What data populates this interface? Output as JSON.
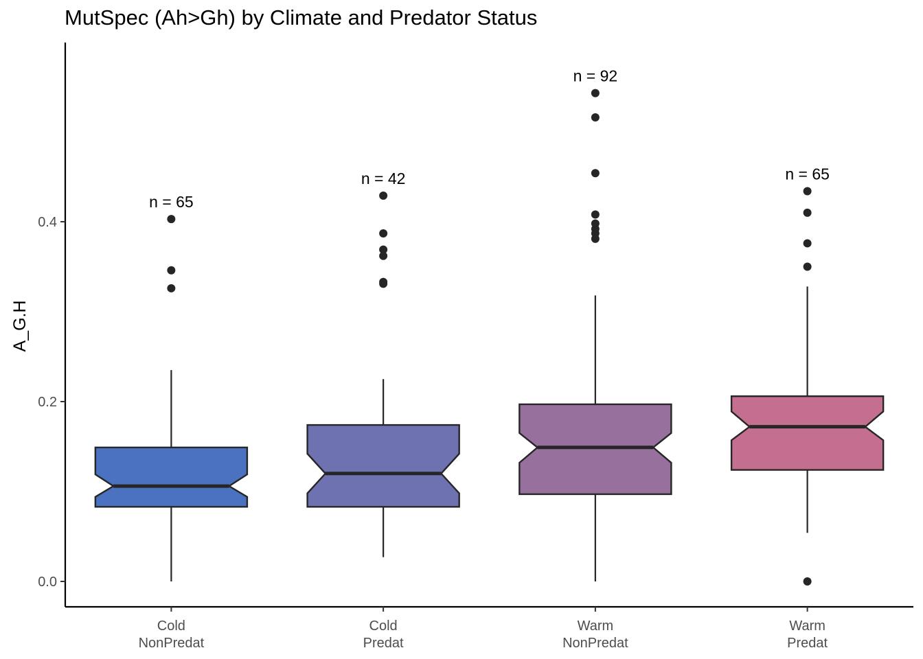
{
  "chart_data": {
    "type": "boxplot",
    "notched": true,
    "title": "MutSpec (Ah>Gh) by Climate and Predator Status",
    "xlabel": "",
    "ylabel": "A_G.H",
    "ylim": [
      -0.028,
      0.6
    ],
    "yticks": [
      0.0,
      0.2,
      0.4
    ],
    "ytick_labels": [
      "0.0",
      "0.2",
      "0.4"
    ],
    "grid": false,
    "categories": [
      [
        "Cold",
        "NonPredat"
      ],
      [
        "Cold",
        "Predat"
      ],
      [
        "Warm",
        "NonPredat"
      ],
      [
        "Warm",
        "Predat"
      ]
    ],
    "boxes": [
      {
        "n_label": "n = 65",
        "whisker_low": 0.0,
        "q1": 0.083,
        "median": 0.106,
        "q3": 0.149,
        "whisker_high": 0.235,
        "notch_low": 0.094,
        "notch_high": 0.119,
        "outliers": [
          0.403,
          0.346,
          0.326
        ],
        "color": "#4A72C0"
      },
      {
        "n_label": "n = 42",
        "whisker_low": 0.027,
        "q1": 0.083,
        "median": 0.12,
        "q3": 0.174,
        "whisker_high": 0.225,
        "notch_low": 0.098,
        "notch_high": 0.142,
        "outliers": [
          0.429,
          0.387,
          0.369,
          0.362,
          0.333,
          0.331
        ],
        "color": "#6E72B0"
      },
      {
        "n_label": "n = 92",
        "whisker_low": 0.0,
        "q1": 0.097,
        "median": 0.149,
        "q3": 0.197,
        "whisker_high": 0.318,
        "notch_low": 0.132,
        "notch_high": 0.165,
        "outliers": [
          0.543,
          0.516,
          0.454,
          0.408,
          0.398,
          0.392,
          0.387,
          0.381
        ],
        "color": "#97709E"
      },
      {
        "n_label": "n = 65",
        "whisker_low": 0.054,
        "q1": 0.124,
        "median": 0.172,
        "q3": 0.206,
        "whisker_high": 0.328,
        "notch_low": 0.157,
        "notch_high": 0.189,
        "outliers": [
          0.434,
          0.41,
          0.376,
          0.35,
          0.0
        ],
        "color": "#C46E90"
      }
    ]
  }
}
